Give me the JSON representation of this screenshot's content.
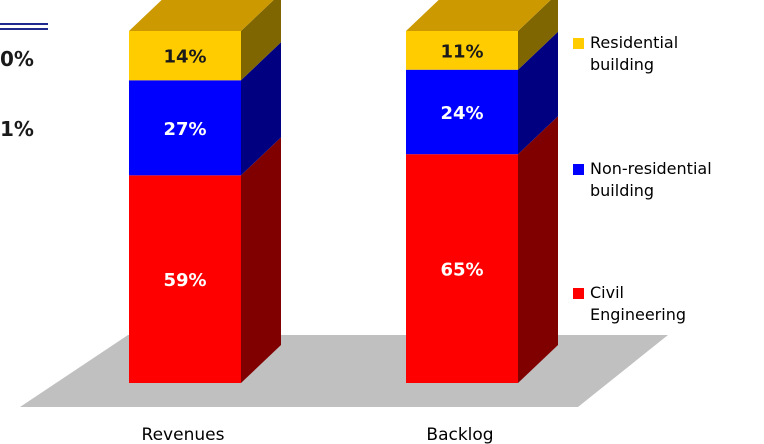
{
  "left_fragment": {
    "line1": "0%",
    "line2": "1%"
  },
  "chart_data": {
    "type": "bar",
    "stacked": true,
    "three_d": true,
    "categories": [
      "Revenues",
      "Backlog"
    ],
    "series": [
      {
        "name": "Civil Engineering",
        "values": [
          59,
          65
        ],
        "color": "#ff0000",
        "side_color": "#800000"
      },
      {
        "name": "Non-residential building",
        "values": [
          27,
          24
        ],
        "color": "#0000ff",
        "side_color": "#000080"
      },
      {
        "name": "Residential building",
        "values": [
          14,
          11
        ],
        "color": "#ffcc00",
        "side_color": "#806600",
        "top_color": "#cc9900"
      }
    ],
    "data_labels": [
      [
        "59%",
        "65%"
      ],
      [
        "27%",
        "24%"
      ],
      [
        "14%",
        "11%"
      ]
    ],
    "legend": {
      "position": "right",
      "entries": [
        {
          "lines": [
            "Residential",
            "building"
          ],
          "color": "#ffcc00"
        },
        {
          "lines": [
            "Non-residential",
            "building"
          ],
          "color": "#0000ff"
        },
        {
          "lines": [
            "Civil",
            "Engineering"
          ],
          "color": "#ff0000"
        }
      ]
    },
    "ylim": [
      0,
      100
    ],
    "floor_color": "#c0c0c0"
  }
}
